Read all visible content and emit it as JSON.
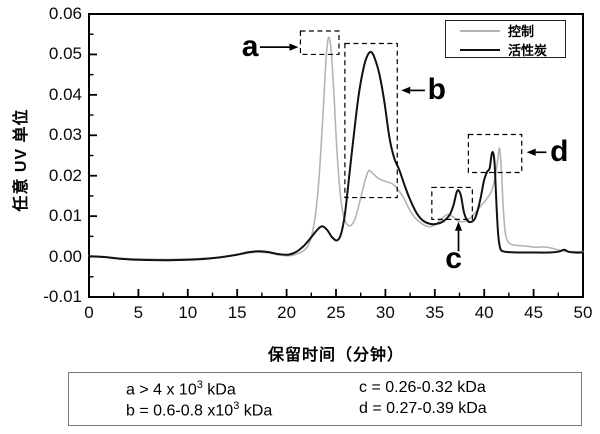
{
  "chart_data": {
    "type": "line",
    "title": "",
    "xlabel": "保留时间（分钟）",
    "ylabel": "任意 UV 单位",
    "xlim": [
      0,
      50
    ],
    "ylim": [
      -0.01,
      0.06
    ],
    "x_ticks": [
      {
        "v": 0,
        "label": "0"
      },
      {
        "v": 5,
        "label": "5"
      },
      {
        "v": 10,
        "label": "10"
      },
      {
        "v": 15,
        "label": "15"
      },
      {
        "v": 20,
        "label": "20"
      },
      {
        "v": 25,
        "label": "25"
      },
      {
        "v": 30,
        "label": "30"
      },
      {
        "v": 35,
        "label": "35"
      },
      {
        "v": 40,
        "label": "40"
      },
      {
        "v": 45,
        "label": "45"
      },
      {
        "v": 50,
        "label": "50"
      }
    ],
    "y_ticks": [
      {
        "v": 0.06,
        "label": "0.06"
      },
      {
        "v": 0.05,
        "label": "0.05"
      },
      {
        "v": 0.04,
        "label": "0.04"
      },
      {
        "v": 0.03,
        "label": "0.03"
      },
      {
        "v": 0.02,
        "label": "0.02"
      },
      {
        "v": 0.01,
        "label": "0.01"
      },
      {
        "v": 0,
        "label": "0.00"
      },
      {
        "v": -0.01,
        "label": "-0.01"
      }
    ],
    "x_minor_step": 2.5,
    "y_minor_step": 0.005,
    "grid": false,
    "legend_position": "top-right",
    "series": [
      {
        "name": "控制",
        "color": "#b4b4b4",
        "stroke_width": 1.6,
        "points": [
          [
            0,
            0.0002
          ],
          [
            1.5,
            0
          ],
          [
            3,
            -0.0004
          ],
          [
            5,
            -0.0006
          ],
          [
            8,
            -0.0007
          ],
          [
            10,
            -0.0006
          ],
          [
            12,
            -0.0004
          ],
          [
            13.5,
            -0.0001
          ],
          [
            15,
            0.0004
          ],
          [
            16.2,
            0.0009
          ],
          [
            17.2,
            0.0011
          ],
          [
            18.2,
            0.0009
          ],
          [
            19.2,
            0.0004
          ],
          [
            20.2,
            0.0002
          ],
          [
            21,
            0.0006
          ],
          [
            21.8,
            0.0016
          ],
          [
            22.4,
            0.004
          ],
          [
            22.9,
            0.01
          ],
          [
            23.3,
            0.02
          ],
          [
            23.7,
            0.036
          ],
          [
            24,
            0.049
          ],
          [
            24.25,
            0.0542
          ],
          [
            24.5,
            0.051
          ],
          [
            24.8,
            0.04
          ],
          [
            25.1,
            0.026
          ],
          [
            25.5,
            0.014
          ],
          [
            25.9,
            0.009
          ],
          [
            26.4,
            0.0076
          ],
          [
            26.9,
            0.0092
          ],
          [
            27.4,
            0.0135
          ],
          [
            27.9,
            0.0185
          ],
          [
            28.3,
            0.0212
          ],
          [
            28.7,
            0.0206
          ],
          [
            29.3,
            0.0193
          ],
          [
            30,
            0.0186
          ],
          [
            30.7,
            0.018
          ],
          [
            31.2,
            0.0168
          ],
          [
            31.8,
            0.0147
          ],
          [
            32.4,
            0.0118
          ],
          [
            33,
            0.0096
          ],
          [
            33.7,
            0.0081
          ],
          [
            34.4,
            0.0074
          ],
          [
            35,
            0.0078
          ],
          [
            35.7,
            0.0094
          ],
          [
            36.3,
            0.0104
          ],
          [
            36.8,
            0.0099
          ],
          [
            37.4,
            0.0088
          ],
          [
            38,
            0.0087
          ],
          [
            38.7,
            0.0098
          ],
          [
            39.4,
            0.0118
          ],
          [
            40.1,
            0.0138
          ],
          [
            40.7,
            0.016
          ],
          [
            41.1,
            0.0195
          ],
          [
            41.35,
            0.0235
          ],
          [
            41.55,
            0.0268
          ],
          [
            41.75,
            0.021
          ],
          [
            41.95,
            0.011
          ],
          [
            42.2,
            0.005
          ],
          [
            42.6,
            0.0032
          ],
          [
            43.2,
            0.0028
          ],
          [
            44.2,
            0.0026
          ],
          [
            45.2,
            0.0023
          ],
          [
            46,
            0.0024
          ],
          [
            46.6,
            0.0022
          ],
          [
            47.4,
            0.0017
          ],
          [
            48.2,
            0.0013
          ],
          [
            49,
            0.0012
          ],
          [
            50,
            0.0012
          ]
        ]
      },
      {
        "name": "活性炭",
        "color": "#111111",
        "stroke_width": 2,
        "points": [
          [
            0,
            0.0001
          ],
          [
            1.5,
            -0.0001
          ],
          [
            3,
            -0.0005
          ],
          [
            5,
            -0.0008
          ],
          [
            8,
            -0.0009
          ],
          [
            10,
            -0.0008
          ],
          [
            12,
            -0.0005
          ],
          [
            13.5,
            -0.0001
          ],
          [
            15,
            0.0005
          ],
          [
            16.2,
            0.0011
          ],
          [
            17.2,
            0.0013
          ],
          [
            18.2,
            0.0011
          ],
          [
            19.2,
            0.0006
          ],
          [
            20.2,
            0.0005
          ],
          [
            21,
            0.0012
          ],
          [
            21.8,
            0.0028
          ],
          [
            22.5,
            0.0048
          ],
          [
            23.1,
            0.0066
          ],
          [
            23.6,
            0.0075
          ],
          [
            24.1,
            0.0066
          ],
          [
            24.6,
            0.0048
          ],
          [
            25.1,
            0.004
          ],
          [
            25.5,
            0.0055
          ],
          [
            25.9,
            0.0105
          ],
          [
            26.3,
            0.019
          ],
          [
            26.8,
            0.03
          ],
          [
            27.3,
            0.04
          ],
          [
            27.8,
            0.0468
          ],
          [
            28.2,
            0.0498
          ],
          [
            28.55,
            0.0506
          ],
          [
            28.9,
            0.0492
          ],
          [
            29.4,
            0.045
          ],
          [
            29.9,
            0.0382
          ],
          [
            30.4,
            0.0295
          ],
          [
            30.9,
            0.0243
          ],
          [
            31.4,
            0.0215
          ],
          [
            32,
            0.0172
          ],
          [
            32.6,
            0.0135
          ],
          [
            33.2,
            0.0106
          ],
          [
            33.8,
            0.0089
          ],
          [
            34.5,
            0.0081
          ],
          [
            35.2,
            0.0081
          ],
          [
            35.9,
            0.0088
          ],
          [
            36.5,
            0.0103
          ],
          [
            36.9,
            0.0128
          ],
          [
            37.2,
            0.0158
          ],
          [
            37.4,
            0.0164
          ],
          [
            37.65,
            0.015
          ],
          [
            37.95,
            0.011
          ],
          [
            38.3,
            0.0089
          ],
          [
            38.7,
            0.0086
          ],
          [
            39.1,
            0.0096
          ],
          [
            39.6,
            0.014
          ],
          [
            40,
            0.019
          ],
          [
            40.3,
            0.021
          ],
          [
            40.55,
            0.0218
          ],
          [
            40.75,
            0.0252
          ],
          [
            40.9,
            0.0257
          ],
          [
            41.05,
            0.023
          ],
          [
            41.2,
            0.015
          ],
          [
            41.4,
            0.006
          ],
          [
            41.6,
            0.0022
          ],
          [
            41.9,
            0.0013
          ],
          [
            42.5,
            0.0011
          ],
          [
            43.5,
            0.001
          ],
          [
            45,
            0.001
          ],
          [
            46.5,
            0.001
          ],
          [
            47.5,
            0.0012
          ],
          [
            48.1,
            0.0017
          ],
          [
            48.5,
            0.0012
          ],
          [
            49.2,
            0.001
          ],
          [
            50,
            0.001
          ]
        ]
      }
    ],
    "annotations": [
      {
        "label": "a",
        "box": {
          "x0": 21.4,
          "x1": 25.3,
          "y0": 0.05,
          "y1": 0.0558
        },
        "arrow": {
          "x0": 17.3,
          "y0": 0.0518,
          "x1": 21.2,
          "y1": 0.0518
        },
        "label_pos": {
          "x": 16.3,
          "y": 0.0518
        }
      },
      {
        "label": "b",
        "box": {
          "x0": 25.9,
          "x1": 31.2,
          "y0": 0.0146,
          "y1": 0.0527
        },
        "arrow": {
          "x0": 34,
          "y0": 0.0411,
          "x1": 31.6,
          "y1": 0.0411
        },
        "label_pos": {
          "x": 35.2,
          "y": 0.0411
        }
      },
      {
        "label": "c",
        "box": {
          "x0": 34.7,
          "x1": 38.8,
          "y0": 0.0092,
          "y1": 0.0171
        },
        "arrow": {
          "x0": 37.4,
          "y0": 0.0013,
          "x1": 37.4,
          "y1": 0.0086
        },
        "label_pos": {
          "x": 36.9,
          "y": -0.0006
        }
      },
      {
        "label": "d",
        "box": {
          "x0": 38.4,
          "x1": 43.8,
          "y0": 0.0208,
          "y1": 0.0302
        },
        "arrow": {
          "x0": 46.3,
          "y0": 0.0258,
          "x1": 44.3,
          "y1": 0.0258
        },
        "label_pos": {
          "x": 47.6,
          "y": 0.0258
        }
      }
    ]
  },
  "legend": {
    "entries": [
      {
        "label": "控制",
        "color": "#b4b4b4"
      },
      {
        "label": "活性炭",
        "color": "#111111"
      }
    ]
  },
  "info_box": {
    "items": [
      {
        "prefix": "a > 4 x 10",
        "sup": "3",
        "suffix": " kDa"
      },
      {
        "prefix": "b = 0.6-0.8 x10",
        "sup": "3",
        "suffix": " kDa"
      },
      {
        "prefix": "c = 0.26-0.32 kDa",
        "sup": "",
        "suffix": ""
      },
      {
        "prefix": "d = 0.27-0.39 kDa",
        "sup": "",
        "suffix": ""
      }
    ]
  }
}
